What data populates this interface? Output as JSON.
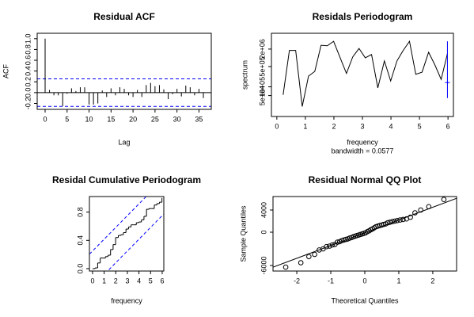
{
  "chart_data": [
    {
      "type": "acf",
      "title": "Residual ACF",
      "xlabel": "Lag",
      "ylabel": "ACF",
      "x": [
        0,
        1,
        2,
        3,
        4,
        5,
        6,
        7,
        8,
        9,
        10,
        11,
        12,
        13,
        14,
        15,
        16,
        17,
        18,
        19,
        20,
        21,
        22,
        23,
        24,
        25,
        26,
        27,
        28,
        29,
        30,
        31,
        32,
        33,
        34,
        35,
        36
      ],
      "values": [
        1,
        0.05,
        -0.05,
        -0.05,
        -0.25,
        -0.02,
        0.08,
        0.03,
        0.1,
        0.1,
        -0.22,
        -0.22,
        -0.2,
        0.04,
        -0.08,
        0.08,
        -0.05,
        0.1,
        0.07,
        -0.05,
        -0.08,
        0.05,
        -0.08,
        0.14,
        0.18,
        0.12,
        0.14,
        0.06,
        -0.12,
        -0.03,
        0.07,
        -0.07,
        0.13,
        0.1,
        -0.05,
        0.07,
        -0.1
      ],
      "color": "#000000",
      "hlines": [
        0.255,
        -0.255
      ],
      "hline_color": "#0000ff",
      "xlim": [
        -1.8,
        37.8
      ],
      "xticks": [
        0,
        5,
        10,
        15,
        20,
        25,
        30,
        35
      ],
      "ylim": [
        -0.31,
        1.1
      ],
      "yticks": [
        {
          "value": -0.2,
          "label": "-0.2"
        },
        {
          "value": 0,
          "label": "0.0"
        },
        0.2,
        0.4,
        0.6,
        0.8,
        {
          "value": 1,
          "label": "1.0"
        }
      ]
    },
    {
      "type": "line",
      "title": "Residals Periodogram",
      "xlabel": "frequency",
      "subtitle": "bandwidth = 0.0577",
      "ylabel": "spectrum",
      "x": [
        0.22,
        0.44,
        0.66,
        0.89,
        1.11,
        1.33,
        1.55,
        1.77,
        1.99,
        2.22,
        2.44,
        2.66,
        2.88,
        3.1,
        3.32,
        3.54,
        3.77,
        3.99,
        4.21,
        4.43,
        4.65,
        4.87,
        5.09,
        5.32,
        5.54,
        5.76,
        5.98
      ],
      "values": [
        53000,
        1800000,
        1800000,
        21000,
        235000,
        340000,
        2700000,
        2600000,
        3700000,
        1000000,
        290000,
        1070000,
        2100000,
        1000000,
        1300000,
        92000,
        780000,
        160000,
        780000,
        1800000,
        3700000,
        270000,
        320000,
        1550000,
        570000,
        180000,
        1400000
      ],
      "color": "#000000",
      "log_y": true,
      "interval": {
        "x": 5.98,
        "lower": 41000,
        "center": 140000,
        "upper": 3700000,
        "color": "#0000ff"
      },
      "xlim": [
        -0.19,
        6.19
      ],
      "xticks": [
        0,
        1,
        2,
        3,
        4,
        5,
        6
      ],
      "ylim": [
        9500,
        7000000
      ],
      "yticks": [
        {
          "value": 50000,
          "label": "5e+04"
        },
        {
          "value": 100000,
          "label": "1e+05"
        },
        {
          "value": 500000,
          "label": "5e+05"
        },
        {
          "value": 2000000,
          "label": "2e+06"
        }
      ]
    },
    {
      "type": "step",
      "title": "Residal Cumulative Periodogram",
      "xlabel": "frequency",
      "x": [
        0,
        0.22,
        0.44,
        0.66,
        0.89,
        1.11,
        1.33,
        1.55,
        1.77,
        1.99,
        2.22,
        2.44,
        2.66,
        2.88,
        3.1,
        3.32,
        3.54,
        3.77,
        3.99,
        4.21,
        4.43,
        4.65,
        4.87,
        5.09,
        5.32,
        5.54,
        5.76,
        5.98
      ],
      "values": [
        0,
        0.01,
        0.08,
        0.15,
        0.15,
        0.17,
        0.19,
        0.27,
        0.34,
        0.44,
        0.47,
        0.48,
        0.51,
        0.56,
        0.59,
        0.62,
        0.62,
        0.65,
        0.66,
        0.69,
        0.74,
        0.84,
        0.85,
        0.85,
        0.9,
        0.92,
        0.94,
        1
      ],
      "color": "#000000",
      "reference_lines": [
        {
          "intercept": 0.25,
          "slope": 0.1667
        },
        {
          "intercept": -0.25,
          "slope": 0.1667
        }
      ],
      "reference_color": "#0000ff",
      "xlim": [
        -0.27,
        6.14
      ],
      "xticks": [
        0,
        1,
        2,
        3,
        4,
        5,
        6
      ],
      "ylim": [
        -0.034,
        1.02
      ],
      "yticks": [
        {
          "value": 0,
          "label": "0.0"
        },
        0.4,
        0.8
      ]
    },
    {
      "type": "scatter",
      "title": "Residual Normal QQ Plot",
      "xlabel": "Theoretical Quantiles",
      "ylabel": "Sample Quantiles",
      "x": [
        -2.326,
        -1.881,
        -1.645,
        -1.476,
        -1.341,
        -1.227,
        -1.126,
        -1.036,
        -0.954,
        -0.878,
        -0.806,
        -0.739,
        -0.674,
        -0.613,
        -0.553,
        -0.496,
        -0.44,
        -0.385,
        -0.332,
        -0.279,
        -0.228,
        -0.176,
        -0.126,
        -0.075,
        -0.025,
        0.025,
        0.075,
        0.126,
        0.176,
        0.228,
        0.279,
        0.332,
        0.385,
        0.44,
        0.496,
        0.553,
        0.613,
        0.674,
        0.739,
        0.806,
        0.878,
        0.954,
        1.036,
        1.126,
        1.227,
        1.341,
        1.476,
        1.645,
        1.881,
        2.326
      ],
      "values": [
        -6300,
        -5500,
        -4400,
        -4000,
        -3200,
        -3000,
        -2600,
        -2500,
        -2300,
        -2200,
        -1800,
        -1700,
        -1500,
        -1400,
        -1300,
        -1200,
        -1050,
        -950,
        -800,
        -700,
        -600,
        -500,
        -400,
        -300,
        -200,
        -100,
        100,
        250,
        450,
        600,
        800,
        1000,
        1100,
        1200,
        1300,
        1400,
        1500,
        1700,
        1800,
        1900,
        2000,
        2100,
        2200,
        2300,
        2400,
        2700,
        3500,
        4000,
        4600,
        5900
      ],
      "color": "#000000",
      "qqline": {
        "intercept": -100,
        "slope": 2300
      },
      "xlim": [
        -2.7,
        2.7
      ],
      "xticks": [
        -2,
        -1,
        0,
        1,
        2
      ],
      "ylim": [
        -7000,
        6430
      ],
      "yticks": [
        -6000,
        0,
        4000
      ]
    }
  ]
}
